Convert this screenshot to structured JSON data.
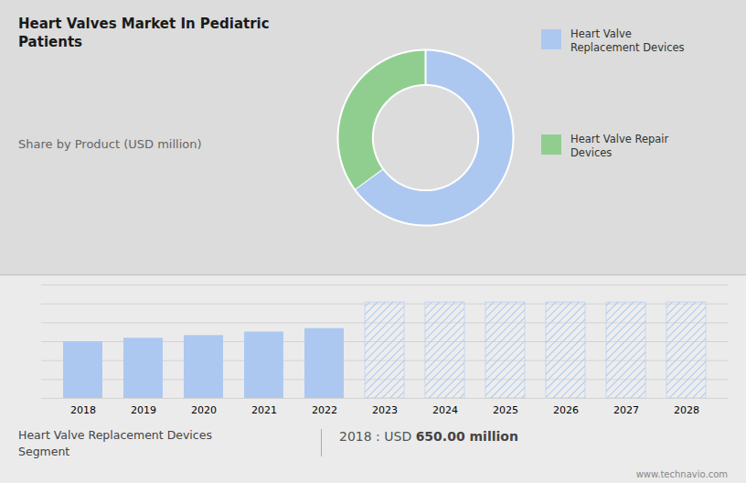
{
  "chart_data": [
    {
      "type": "donut",
      "title": "Heart Valves Market In Pediatric\nPatients",
      "subtitle": "Share by Product (USD million)",
      "categories": [
        "Heart Valve\nReplacement Devices",
        "Heart Valve Repair\nDevices"
      ],
      "values": [
        65,
        35
      ],
      "colors": [
        "#adc8f0",
        "#90ce90"
      ],
      "legend": "right"
    },
    {
      "type": "bar",
      "x": [
        2018,
        2019,
        2020,
        2021,
        2022,
        2023,
        2024,
        2025,
        2026,
        2027,
        2028
      ],
      "series": [
        {
          "color": "#adc8f0",
          "values": [
            650,
            690,
            720,
            760,
            800,
            null,
            null,
            null,
            null,
            null,
            null
          ]
        },
        {
          "color": "#adc8f0",
          "values": [
            null,
            null,
            null,
            null,
            null,
            1100,
            1100,
            1100,
            1100,
            1100,
            1100
          ]
        }
      ],
      "ylim": [
        0,
        1300
      ],
      "yticks": [
        0,
        216.66666666666666,
        433.3333333333333,
        650,
        866.6666666666666,
        1083.3333333333333,
        1300
      ],
      "grid": true,
      "tick_labels": "x",
      "annotations": [
        "Heart Valve Replacement Devices\nSegment",
        "2018 : USD ",
        "650.00 million",
        "www.technavio.com"
      ]
    }
  ]
}
